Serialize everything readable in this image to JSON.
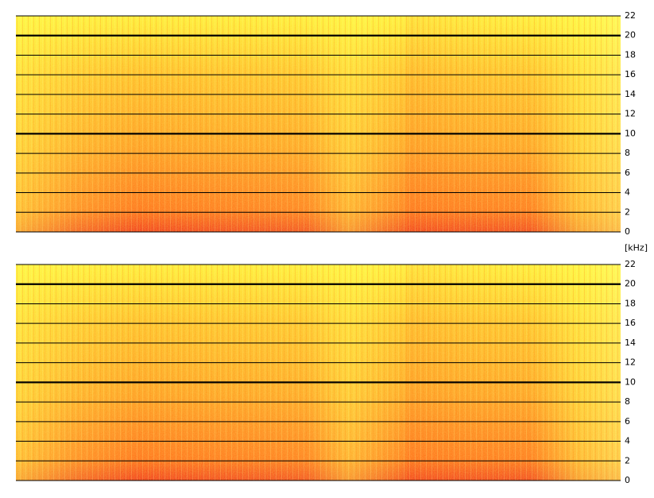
{
  "chart_data": [
    {
      "type": "spectrogram",
      "ylim": [
        0,
        22
      ],
      "yticks": [
        0,
        2,
        4,
        6,
        8,
        10,
        12,
        14,
        16,
        18,
        20,
        22
      ],
      "bold_gridlines": [
        10,
        20
      ],
      "y_unit": "[kHz]"
    },
    {
      "type": "spectrogram",
      "ylim": [
        0,
        22
      ],
      "yticks": [
        0,
        2,
        4,
        6,
        8,
        10,
        12,
        14,
        16,
        18,
        20,
        22
      ],
      "bold_gridlines": [
        10,
        20
      ]
    }
  ]
}
